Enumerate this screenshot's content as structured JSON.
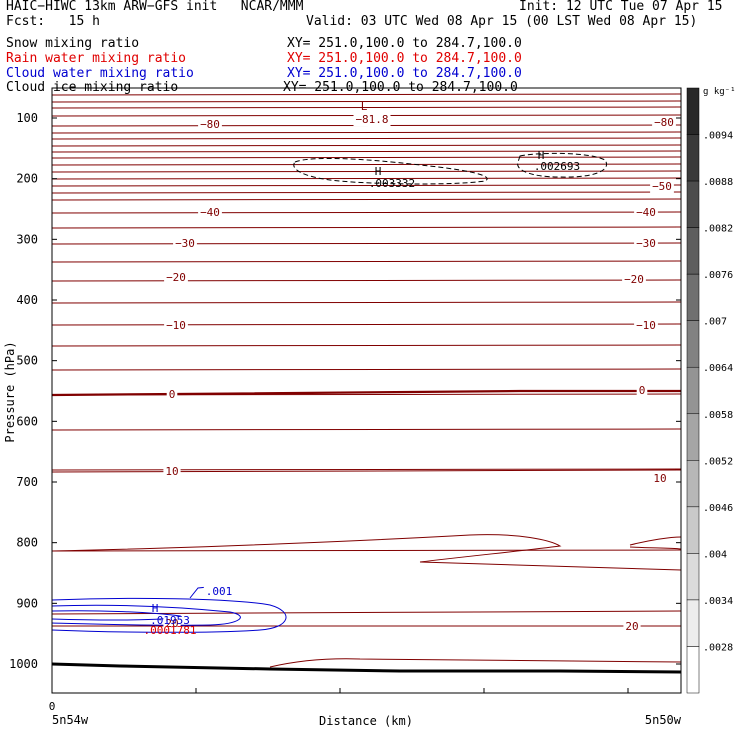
{
  "header": {
    "model_line": "HAIC−HIWC 13km ARW−GFS init   NCAR/MMM",
    "init_line": "Init: 12 UTC Tue 07 Apr 15",
    "fcst_line": "Fcst:   15 h",
    "valid_line": "Valid: 03 UTC Wed 08 Apr 15 (00 LST Wed 08 Apr 15)",
    "fields": [
      {
        "name": "Snow mixing ratio",
        "xy": "XY= 251.0,100.0 to 284.7,100.0",
        "color": "#000000"
      },
      {
        "name": "Rain water mixing ratio",
        "xy": "XY= 251.0,100.0 to 284.7,100.0",
        "color": "#e00000"
      },
      {
        "name": "Cloud water mixing ratio",
        "xy": "XY= 251.0,100.0 to 284.7,100.0",
        "color": "#0000d0"
      },
      {
        "name": "Cloud ice mixing ratio",
        "xy": "XY= 251.0,100.0 to 284.7,100.0",
        "color": "#000000"
      }
    ]
  },
  "chart_data": {
    "type": "contour cross-section",
    "xlabel": "Distance (km)",
    "ylabel": "Pressure (hPa)",
    "x_start_label": "5n54w",
    "x_end_label": "5n50w",
    "x_zero_label": "0",
    "y_ticks": [
      100,
      200,
      300,
      400,
      500,
      600,
      700,
      800,
      900,
      1000
    ],
    "y_range_hpa": [
      50,
      1050
    ],
    "colorbar": {
      "unit": "g kg⁻¹",
      "labels": [
        ".0094",
        ".0088",
        ".0082",
        ".0076",
        ".007",
        ".0064",
        ".0058",
        ".0052",
        ".0046",
        ".004",
        ".0034",
        ".0028"
      ]
    },
    "temperature_contour_labels": [
      "−80",
      "−81.8",
      "−50",
      "−40",
      "−30",
      "−20",
      "−10",
      "0",
      "10",
      "20"
    ],
    "extrema": [
      {
        "type": "L",
        "value": "−81.8"
      },
      {
        "type": "H",
        "value": ".003332"
      },
      {
        "type": "H",
        "value": ".002693"
      },
      {
        "type": "H",
        "value": ".01953"
      },
      {
        "type": "H",
        "value": ".0001781"
      }
    ],
    "cloud_water_contour_label": ".001",
    "colors": {
      "temperature": "#800000",
      "cloud_water": "#0000d0",
      "rain": "#e00000",
      "snow_ice": "#000000"
    }
  }
}
